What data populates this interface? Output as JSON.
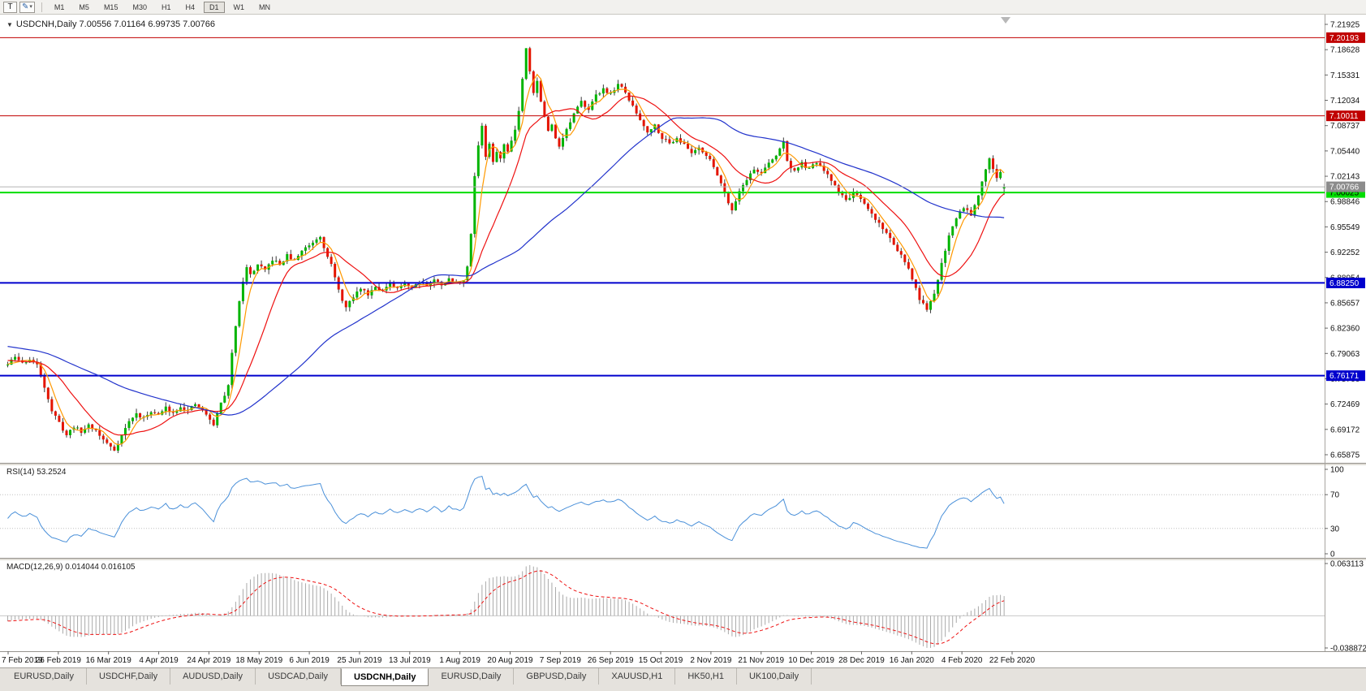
{
  "toolbar": {
    "text_tool_label": "T",
    "style_tool_icon": "pencil-icon",
    "dropdown_arrow": "▾",
    "timeframes": [
      "M1",
      "M5",
      "M15",
      "M30",
      "H1",
      "H4",
      "D1",
      "W1",
      "MN"
    ],
    "active_timeframe": "D1"
  },
  "chart": {
    "collapse_arrow": "▼",
    "title": "USDCNH,Daily  7.00556 7.01164 6.99735 7.00766",
    "rsi_label": "RSI(14) 53.2524",
    "macd_label": "MACD(12,26,9) 0.014044 0.016105"
  },
  "chart_data": {
    "type": "candlestick",
    "symbol": "USDCNH",
    "timeframe": "Daily",
    "ohlc": {
      "open": 7.00556,
      "high": 7.01164,
      "low": 6.99735,
      "close": 7.00766
    },
    "x_tick_labels": [
      "7 Feb 2019",
      "26 Feb 2019",
      "16 Mar 2019",
      "4 Apr 2019",
      "24 Apr 2019",
      "18 May 2019",
      "6 Jun 2019",
      "25 Jun 2019",
      "13 Jul 2019",
      "1 Aug 2019",
      "20 Aug 2019",
      "7 Sep 2019",
      "26 Sep 2019",
      "15 Oct 2019",
      "2 Nov 2019",
      "21 Nov 2019",
      "10 Dec 2019",
      "28 Dec 2019",
      "16 Jan 2020",
      "4 Feb 2020",
      "22 Feb 2020"
    ],
    "y_tick_labels": [
      "7.21925",
      "7.18628",
      "7.15331",
      "7.12034",
      "7.08737",
      "7.05440",
      "7.02143",
      "6.98846",
      "6.95549",
      "6.92252",
      "6.88954",
      "6.85657",
      "6.82360",
      "6.79063",
      "6.75766",
      "6.72469",
      "6.69172",
      "6.65875"
    ],
    "price_range": {
      "top": 7.21925,
      "bottom": 6.65875
    },
    "horizontal_lines": [
      {
        "price": 7.20193,
        "label": "7.20193",
        "color": "#c00000",
        "width": 1,
        "text_color": "#ffffff"
      },
      {
        "price": 7.10011,
        "label": "7.10011",
        "color": "#c00000",
        "width": 1,
        "text_color": "#ffffff"
      },
      {
        "price": 7.00025,
        "label": "7.00025",
        "color": "#00dd00",
        "width": 2,
        "text_color": "#000000"
      },
      {
        "price": 6.8825,
        "label": "6.88250",
        "color": "#0000cd",
        "width": 2,
        "text_color": "#ffffff"
      },
      {
        "price": 6.76171,
        "label": "6.76171",
        "color": "#0000cd",
        "width": 2,
        "text_color": "#ffffff"
      }
    ],
    "current_price": {
      "price": 7.00766,
      "label": "7.00766",
      "line_color": "#b4b4b4",
      "box_color": "#8c8c8c",
      "text_color": "#ffffff"
    },
    "candles": {
      "count": 272,
      "seed": 11,
      "body_noise": 0.0045,
      "wick_noise": 0.006,
      "prehistory_start": 6.83,
      "last": {
        "open": 7.00556,
        "high": 7.01164,
        "low": 6.99735,
        "close": 7.00766
      }
    },
    "colors": {
      "bull": "#00b400",
      "bear": "#e41400",
      "wick": "#3a3a3a"
    },
    "close_anchors": [
      [
        0,
        6.776
      ],
      [
        2,
        6.786
      ],
      [
        4,
        6.778
      ],
      [
        6,
        6.783
      ],
      [
        8,
        6.775
      ],
      [
        10,
        6.748
      ],
      [
        12,
        6.716
      ],
      [
        14,
        6.7
      ],
      [
        16,
        6.684
      ],
      [
        18,
        6.696
      ],
      [
        20,
        6.688
      ],
      [
        22,
        6.698
      ],
      [
        24,
        6.69
      ],
      [
        26,
        6.678
      ],
      [
        29,
        6.665
      ],
      [
        31,
        6.684
      ],
      [
        33,
        6.702
      ],
      [
        35,
        6.712
      ],
      [
        37,
        6.706
      ],
      [
        39,
        6.716
      ],
      [
        41,
        6.71
      ],
      [
        43,
        6.72
      ],
      [
        45,
        6.713
      ],
      [
        47,
        6.722
      ],
      [
        49,
        6.716
      ],
      [
        51,
        6.724
      ],
      [
        53,
        6.717
      ],
      [
        54,
        6.71
      ],
      [
        56,
        6.698
      ],
      [
        58,
        6.726
      ],
      [
        60,
        6.748
      ],
      [
        61,
        6.79
      ],
      [
        62,
        6.828
      ],
      [
        63,
        6.86
      ],
      [
        64,
        6.886
      ],
      [
        65,
        6.902
      ],
      [
        66,
        6.893
      ],
      [
        68,
        6.906
      ],
      [
        70,
        6.898
      ],
      [
        72,
        6.913
      ],
      [
        74,
        6.906
      ],
      [
        76,
        6.918
      ],
      [
        78,
        6.911
      ],
      [
        80,
        6.925
      ],
      [
        82,
        6.932
      ],
      [
        84,
        6.94
      ],
      [
        85,
        6.944
      ],
      [
        86,
        6.93
      ],
      [
        88,
        6.906
      ],
      [
        90,
        6.872
      ],
      [
        92,
        6.85
      ],
      [
        94,
        6.864
      ],
      [
        96,
        6.876
      ],
      [
        98,
        6.868
      ],
      [
        100,
        6.879
      ],
      [
        102,
        6.872
      ],
      [
        104,
        6.881
      ],
      [
        106,
        6.874
      ],
      [
        108,
        6.883
      ],
      [
        110,
        6.877
      ],
      [
        112,
        6.885
      ],
      [
        114,
        6.879
      ],
      [
        116,
        6.886
      ],
      [
        118,
        6.881
      ],
      [
        120,
        6.887
      ],
      [
        122,
        6.883
      ],
      [
        124,
        6.886
      ],
      [
        125,
        6.902
      ],
      [
        126,
        6.948
      ],
      [
        127,
        7.022
      ],
      [
        128,
        7.062
      ],
      [
        129,
        7.088
      ],
      [
        130,
        7.046
      ],
      [
        131,
        7.064
      ],
      [
        132,
        7.038
      ],
      [
        133,
        7.055
      ],
      [
        134,
        7.044
      ],
      [
        135,
        7.062
      ],
      [
        136,
        7.054
      ],
      [
        137,
        7.07
      ],
      [
        138,
        7.082
      ],
      [
        139,
        7.108
      ],
      [
        140,
        7.148
      ],
      [
        141,
        7.19
      ],
      [
        142,
        7.16
      ],
      [
        143,
        7.13
      ],
      [
        144,
        7.145
      ],
      [
        145,
        7.12
      ],
      [
        146,
        7.098
      ],
      [
        147,
        7.08
      ],
      [
        148,
        7.088
      ],
      [
        149,
        7.072
      ],
      [
        150,
        7.062
      ],
      [
        152,
        7.082
      ],
      [
        154,
        7.102
      ],
      [
        156,
        7.118
      ],
      [
        158,
        7.11
      ],
      [
        160,
        7.126
      ],
      [
        162,
        7.136
      ],
      [
        164,
        7.128
      ],
      [
        166,
        7.142
      ],
      [
        168,
        7.13
      ],
      [
        170,
        7.112
      ],
      [
        172,
        7.095
      ],
      [
        174,
        7.08
      ],
      [
        176,
        7.088
      ],
      [
        178,
        7.072
      ],
      [
        180,
        7.064
      ],
      [
        182,
        7.072
      ],
      [
        184,
        7.062
      ],
      [
        186,
        7.052
      ],
      [
        188,
        7.06
      ],
      [
        190,
        7.048
      ],
      [
        192,
        7.035
      ],
      [
        194,
        7.012
      ],
      [
        196,
        6.988
      ],
      [
        197,
        6.978
      ],
      [
        199,
        7.002
      ],
      [
        201,
        7.018
      ],
      [
        203,
        7.03
      ],
      [
        205,
        7.026
      ],
      [
        207,
        7.038
      ],
      [
        209,
        7.048
      ],
      [
        211,
        7.068
      ],
      [
        212,
        7.04
      ],
      [
        214,
        7.028
      ],
      [
        216,
        7.038
      ],
      [
        218,
        7.03
      ],
      [
        220,
        7.04
      ],
      [
        222,
        7.028
      ],
      [
        224,
        7.016
      ],
      [
        226,
        7.002
      ],
      [
        228,
        6.99
      ],
      [
        230,
        7.0
      ],
      [
        232,
        6.99
      ],
      [
        234,
        6.978
      ],
      [
        236,
        6.966
      ],
      [
        238,
        6.954
      ],
      [
        240,
        6.94
      ],
      [
        242,
        6.926
      ],
      [
        244,
        6.91
      ],
      [
        246,
        6.888
      ],
      [
        248,
        6.862
      ],
      [
        250,
        6.846
      ],
      [
        252,
        6.868
      ],
      [
        254,
        6.908
      ],
      [
        256,
        6.944
      ],
      [
        258,
        6.968
      ],
      [
        260,
        6.982
      ],
      [
        262,
        6.972
      ],
      [
        264,
        6.998
      ],
      [
        265,
        7.016
      ],
      [
        266,
        7.032
      ],
      [
        267,
        7.046
      ],
      [
        268,
        7.03
      ],
      [
        269,
        7.018
      ],
      [
        270,
        7.028
      ],
      [
        271,
        7.00766
      ]
    ],
    "moving_averages": [
      {
        "period": 5,
        "color": "#ff9900"
      },
      {
        "period": 15,
        "color": "#ee1111"
      },
      {
        "period": 55,
        "color": "#2233cc"
      }
    ],
    "rsi": {
      "period": 14,
      "color": "#4a90d9",
      "levels": [
        70,
        30
      ],
      "scale_labels": [
        {
          "v": 100,
          "t": "100"
        },
        {
          "v": 70,
          "t": "70"
        },
        {
          "v": 30,
          "t": "30"
        },
        {
          "v": 0,
          "t": "0"
        }
      ]
    },
    "macd": {
      "fast": 12,
      "slow": 26,
      "signal": 9,
      "hist_color": "#a9a9a9",
      "signal_color": "#ee1111",
      "scale_top": {
        "v": 0.063113,
        "t": "0.063113"
      },
      "scale_bottom": {
        "v": -0.038872,
        "t": "-0.038872"
      }
    }
  },
  "tabs": [
    "EURUSD,Daily",
    "USDCHF,Daily",
    "AUDUSD,Daily",
    "USDCAD,Daily",
    "USDCNH,Daily",
    "EURUSD,Daily",
    "GBPUSD,Daily",
    "XAUUSD,H1",
    "HK50,H1",
    "UK100,Daily"
  ],
  "active_tab_index": 4
}
